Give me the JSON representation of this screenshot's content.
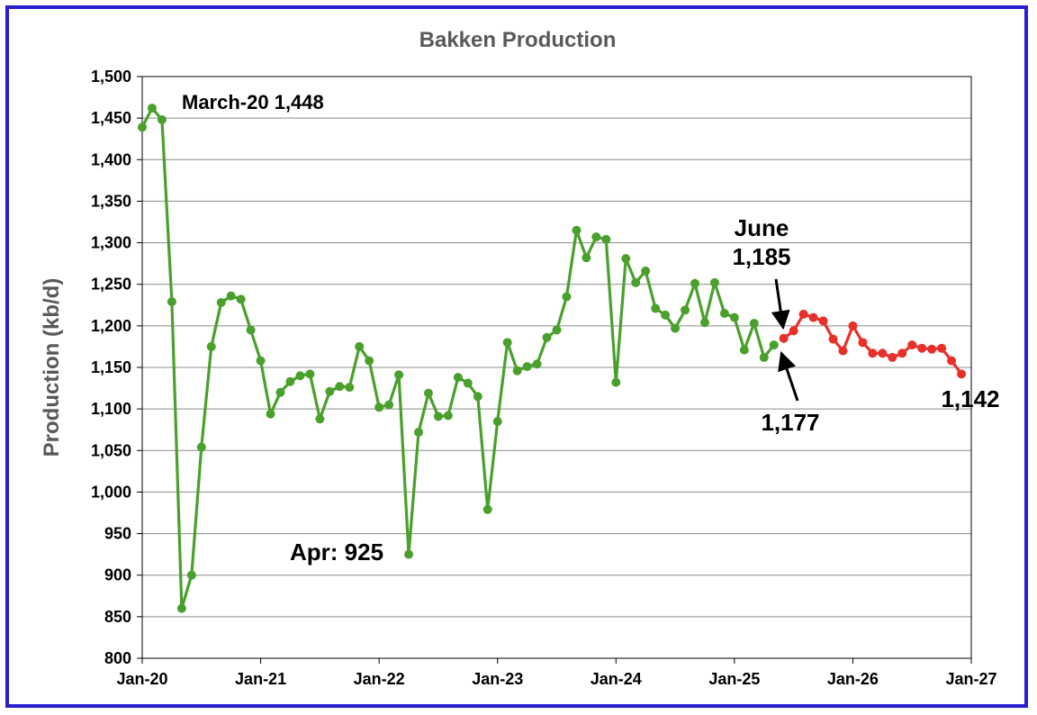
{
  "chart_data": {
    "type": "line",
    "title": "Bakken Production",
    "xlabel": "",
    "ylabel": "Production (kb/d)",
    "ylim": [
      800,
      1500
    ],
    "yticks": [
      800,
      850,
      900,
      950,
      1000,
      1050,
      1100,
      1150,
      1200,
      1250,
      1300,
      1350,
      1400,
      1450,
      1500
    ],
    "ytick_labels": [
      "800",
      "850",
      "900",
      "950",
      "1,000",
      "1,050",
      "1,100",
      "1,150",
      "1,200",
      "1,250",
      "1,300",
      "1,350",
      "1,400",
      "1,450",
      "1,500"
    ],
    "xticks": [
      "Jan-20",
      "Jan-21",
      "Jan-22",
      "Jan-23",
      "Jan-24",
      "Jan-25",
      "Jan-26",
      "Jan-27"
    ],
    "grid": "horizontal",
    "x_start": "Jan-20",
    "series": [
      {
        "color": "#4aa02c",
        "values": [
          1439,
          1462,
          1448,
          1229,
          860,
          900,
          1054,
          1175,
          1228,
          1236,
          1232,
          1195,
          1158,
          1094,
          1120,
          1133,
          1140,
          1142,
          1088,
          1121,
          1127,
          1126,
          1175,
          1158,
          1102,
          1105,
          1141,
          925,
          1072,
          1119,
          1091,
          1092,
          1138,
          1131,
          1115,
          979,
          1085,
          1180,
          1146,
          1151,
          1154,
          1186,
          1195,
          1235,
          1315,
          1282,
          1307,
          1304,
          1132,
          1281,
          1252,
          1266,
          1221,
          1213,
          1197,
          1219,
          1251,
          1204,
          1252,
          1215,
          1210,
          1171,
          1203,
          1162,
          1177
        ]
      },
      {
        "color": "#e8302a",
        "start_month": "Jun-25",
        "values": [
          1185,
          1194,
          1214,
          1210,
          1206,
          1184,
          1170,
          1200,
          1180,
          1167,
          1167,
          1162,
          1167,
          1177,
          1173,
          1172,
          1173,
          1158,
          1142
        ]
      }
    ],
    "annotations": [
      {
        "text": "March-20 1,448"
      },
      {
        "text": "Apr: 925"
      },
      {
        "lines": [
          "June",
          "1,185"
        ]
      },
      {
        "text": "1,177"
      },
      {
        "text": "1,142"
      }
    ]
  }
}
